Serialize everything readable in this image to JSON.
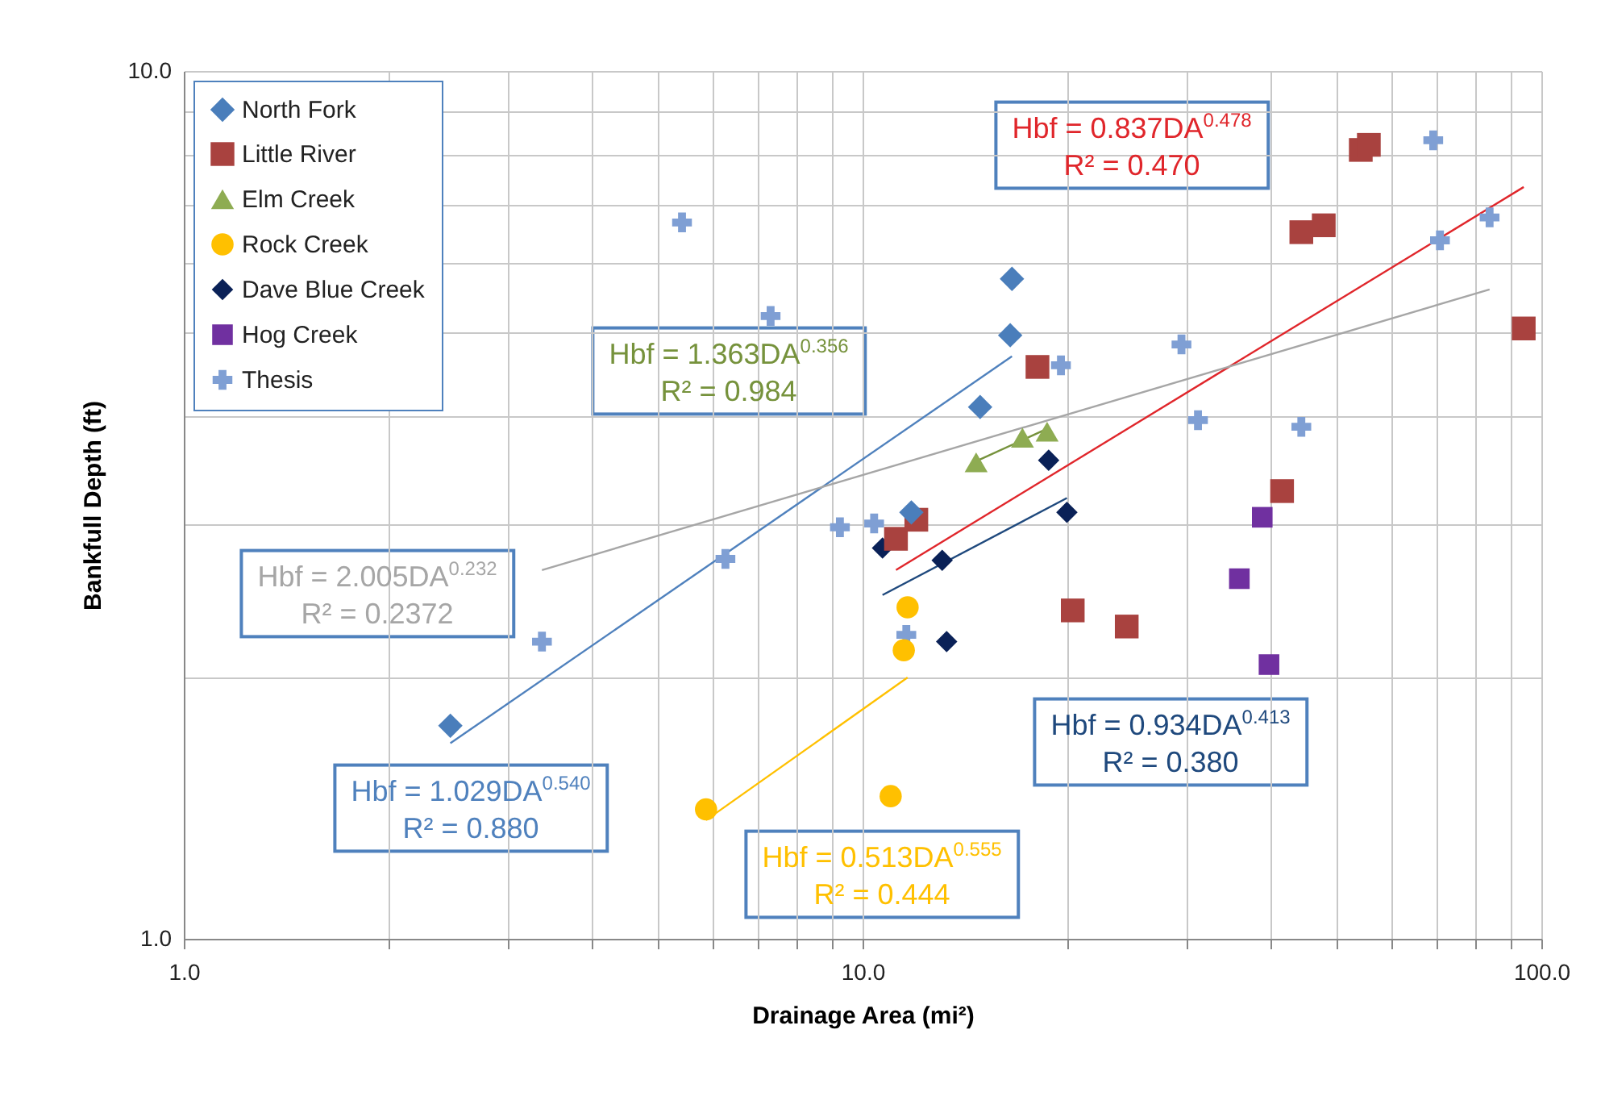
{
  "chart_data": {
    "type": "scatter",
    "xlabel": "Drainage Area (mi²)",
    "ylabel": "Bankfull Depth (ft)",
    "log": "xy",
    "grid": true,
    "legend": "top left",
    "xlim": [
      1,
      100
    ],
    "ylim": [
      1,
      10
    ],
    "xticks": [
      {
        "value": 1,
        "label": "1.0"
      },
      {
        "value": 2,
        "label": null
      },
      {
        "value": 3,
        "label": null
      },
      {
        "value": 4,
        "label": null
      },
      {
        "value": 5,
        "label": null
      },
      {
        "value": 6,
        "label": null
      },
      {
        "value": 7,
        "label": null
      },
      {
        "value": 8,
        "label": null
      },
      {
        "value": 9,
        "label": null
      },
      {
        "value": 10,
        "label": "10.0"
      },
      {
        "value": 20,
        "label": null
      },
      {
        "value": 30,
        "label": null
      },
      {
        "value": 40,
        "label": null
      },
      {
        "value": 50,
        "label": null
      },
      {
        "value": 60,
        "label": null
      },
      {
        "value": 70,
        "label": null
      },
      {
        "value": 80,
        "label": null
      },
      {
        "value": 90,
        "label": null
      },
      {
        "value": 100,
        "label": "100.0"
      }
    ],
    "yticks": [
      {
        "value": 1,
        "label": "1.0"
      },
      {
        "value": 2,
        "label": null
      },
      {
        "value": 3,
        "label": null
      },
      {
        "value": 4,
        "label": null
      },
      {
        "value": 5,
        "label": null
      },
      {
        "value": 6,
        "label": null
      },
      {
        "value": 7,
        "label": null
      },
      {
        "value": 8,
        "label": null
      },
      {
        "value": 9,
        "label": null
      },
      {
        "value": 10,
        "label": "10.0"
      }
    ],
    "series": [
      {
        "name": "North Fork",
        "color": "#4a7ebb",
        "marker": "diamond",
        "x": [
          2.47,
          11.8,
          14.9,
          16.5,
          16.6
        ],
        "values": [
          1.76,
          3.1,
          4.1,
          4.96,
          5.76
        ]
      },
      {
        "name": "Little River",
        "color": "#a9423f",
        "marker": "square",
        "x": [
          11.2,
          12.0,
          18.1,
          20.4,
          24.5,
          41.5,
          44.3,
          47.8,
          54.2,
          55.7,
          94.2
        ],
        "values": [
          2.89,
          3.04,
          4.56,
          2.39,
          2.29,
          3.28,
          6.52,
          6.64,
          8.11,
          8.22,
          5.05
        ]
      },
      {
        "name": "Elm Creek",
        "color": "#8eac52",
        "marker": "triangle",
        "x": [
          14.7,
          17.2,
          18.7
        ],
        "values": [
          3.54,
          3.78,
          3.84
        ]
      },
      {
        "name": "Rock Creek",
        "color": "#ffc000",
        "marker": "circle",
        "x": [
          5.88,
          11.0,
          11.5,
          11.65
        ],
        "values": [
          1.41,
          1.46,
          2.15,
          2.41
        ]
      },
      {
        "name": "Dave Blue Creek",
        "color": "#0a2157",
        "marker": "diamond",
        "x": [
          10.7,
          13.1,
          13.3,
          18.8,
          20.0
        ],
        "values": [
          2.82,
          2.73,
          2.2,
          3.56,
          3.1
        ]
      },
      {
        "name": "Hog Creek",
        "color": "#7030a0",
        "marker": "square",
        "x": [
          35.9,
          38.8,
          39.7
        ],
        "values": [
          2.6,
          3.06,
          2.07
        ]
      },
      {
        "name": "Thesis",
        "color": "#7f9fd4",
        "marker": "cross",
        "x": [
          3.37,
          5.42,
          6.28,
          7.32,
          9.26,
          10.4,
          11.6,
          19.6,
          29.5,
          31.2,
          44.3,
          69.3,
          70.9,
          83.9
        ],
        "values": [
          2.2,
          6.69,
          2.74,
          5.22,
          2.98,
          3.01,
          2.24,
          4.58,
          4.84,
          3.96,
          3.89,
          8.32,
          6.38,
          6.78
        ]
      },
      {
        "type": "line",
        "color": "#4f81bd",
        "x": [
          2.47,
          16.6
        ],
        "values": [
          1.68,
          4.69
        ]
      },
      {
        "type": "line",
        "color": "#e0262b",
        "x": [
          11.2,
          94.2
        ],
        "values": [
          2.66,
          7.35
        ]
      },
      {
        "type": "line",
        "color": "#76923c",
        "x": [
          14.7,
          18.7
        ],
        "values": [
          3.55,
          3.87
        ]
      },
      {
        "type": "line",
        "color": "#ffc000",
        "x": [
          5.88,
          11.65
        ],
        "values": [
          1.37,
          2.0
        ]
      },
      {
        "type": "line",
        "color": "#1f497d",
        "x": [
          10.7,
          20.0
        ],
        "values": [
          2.49,
          3.22
        ]
      },
      {
        "type": "line",
        "color": "#a6a6a6",
        "x": [
          3.37,
          83.9
        ],
        "values": [
          2.66,
          5.6
        ]
      }
    ],
    "annotations": [
      "Hbf = 1.029DA$^{0.540}$\nR² = 0.880",
      "Hbf = 0.837DA$^{0.478}$\nR² = 0.470",
      "Hbf = 1.363DA$^{0.356}$\nR² = 0.984",
      "Hbf = 0.513DA$^{0.555}$\nR² = 0.444",
      "Hbf = 0.934DA$^{0.413}$\nR² = 0.380",
      "Hbf = 2.005DA$^{0.232}$\nR² = 0.2372"
    ]
  }
}
